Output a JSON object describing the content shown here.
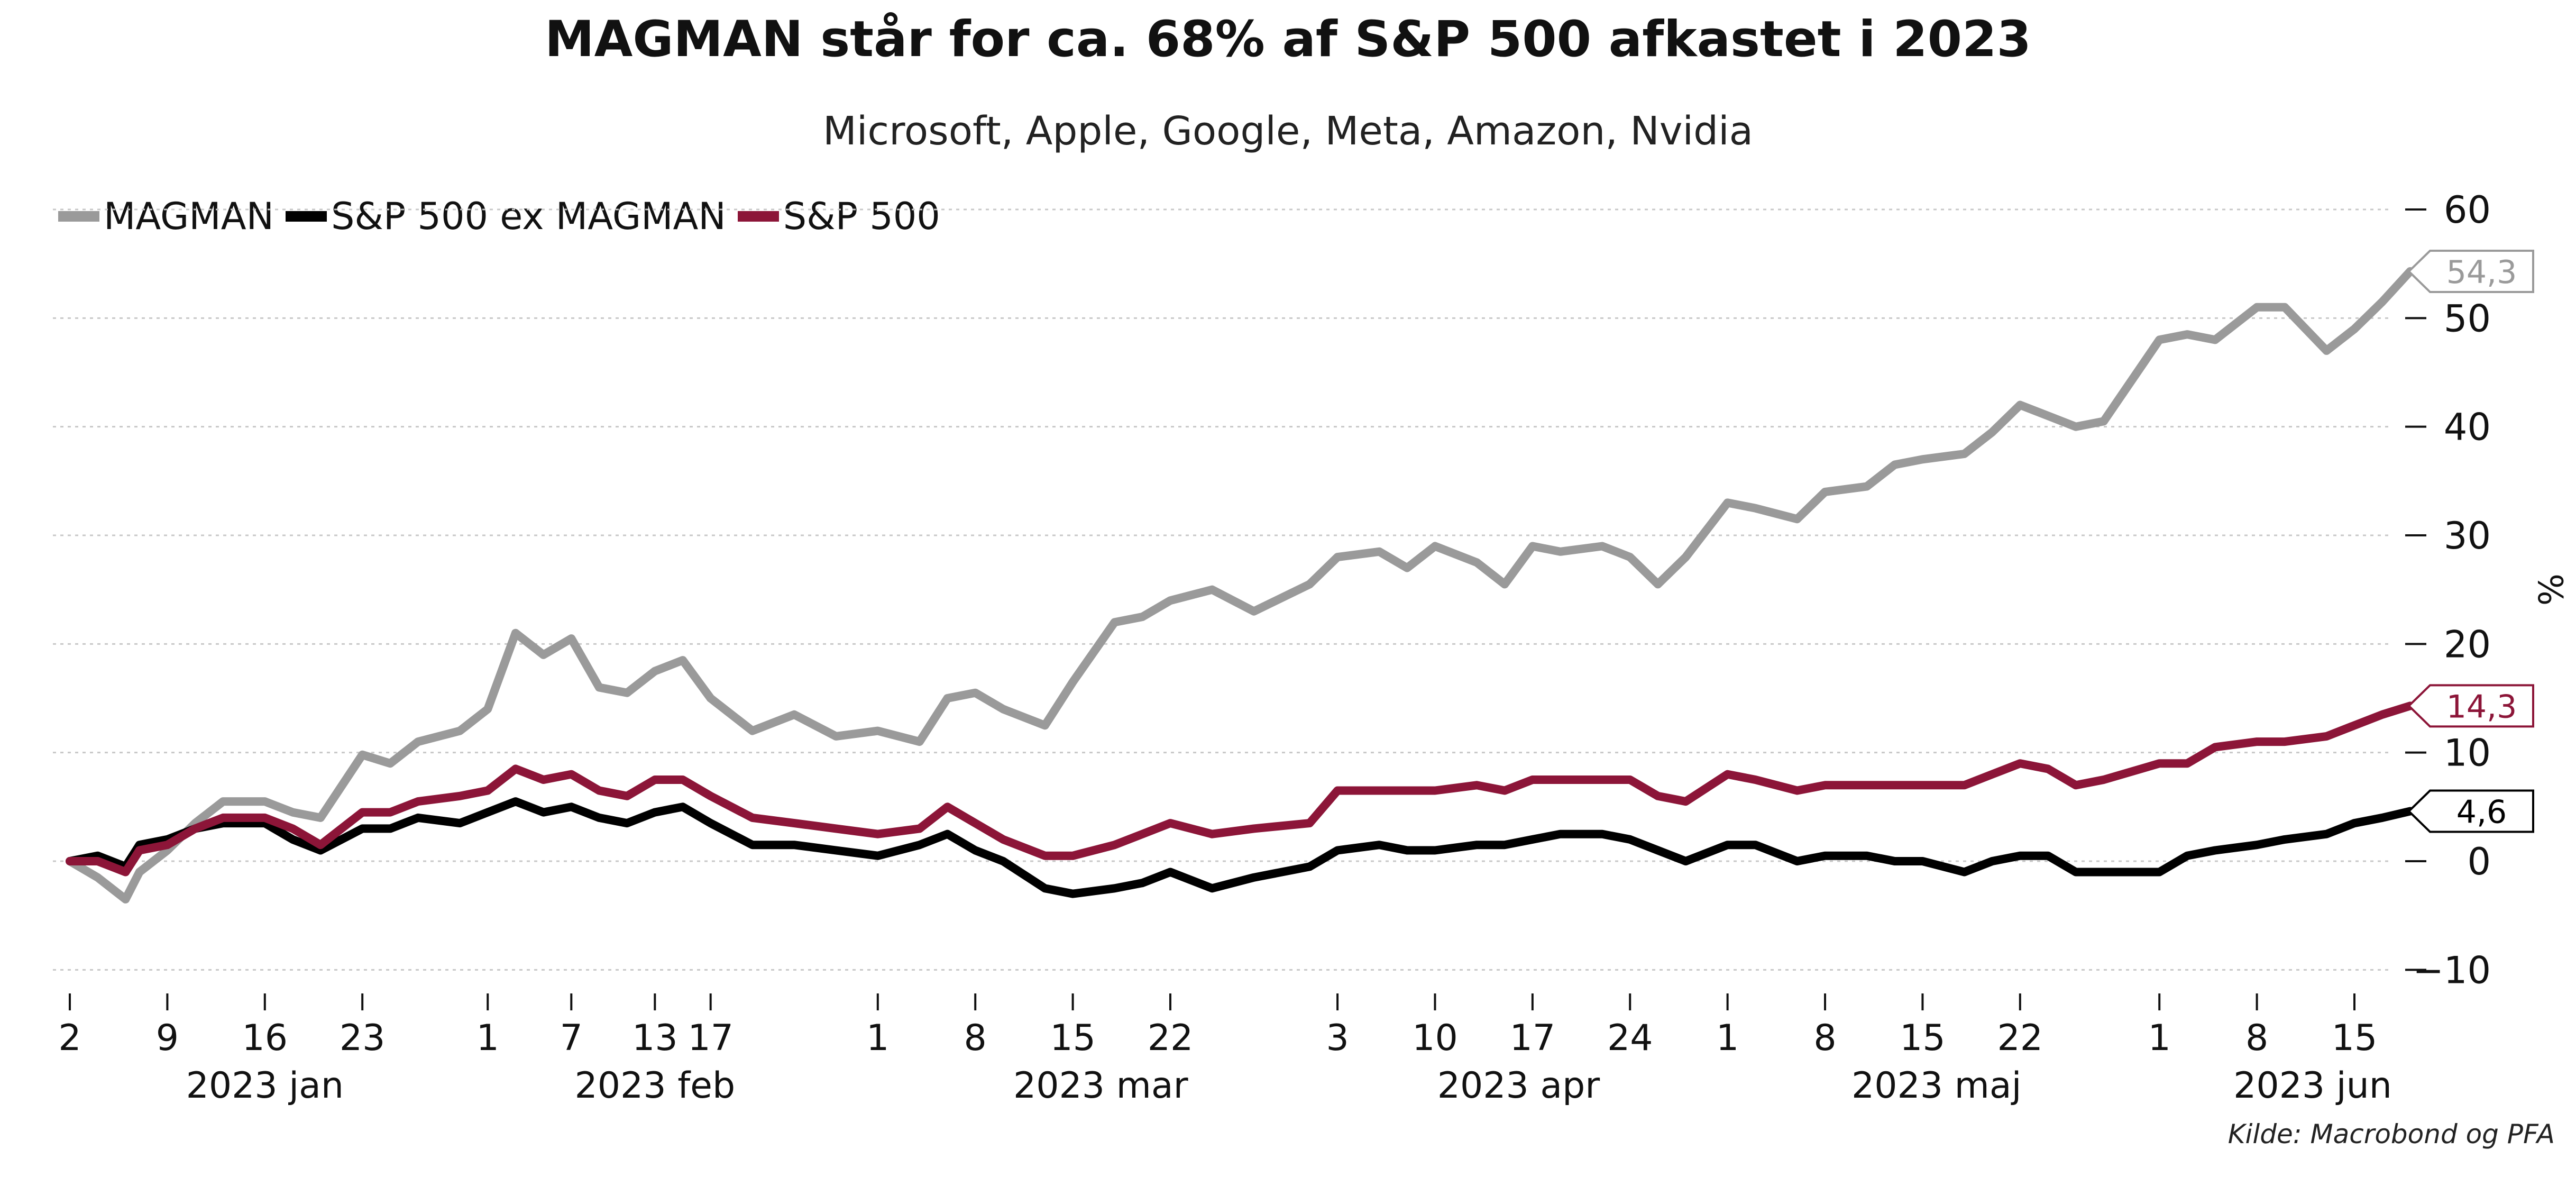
{
  "chart_data": {
    "type": "line",
    "title": "MAGMAN står for ca. 68% af S&P 500 afkastet i 2023",
    "subtitle": "Microsoft, Apple, Google, Meta, Amazon, Nvidia",
    "ylabel": "%",
    "ylim": [
      -12,
      63
    ],
    "yticks": [
      -10,
      0,
      10,
      20,
      30,
      40,
      50,
      60
    ],
    "grid": true,
    "legend_position": "top-left",
    "x_tick_labels": [
      {
        "date": "2023-01-02",
        "label": "2"
      },
      {
        "date": "2023-01-09",
        "label": "9"
      },
      {
        "date": "2023-01-16",
        "label": "16"
      },
      {
        "date": "2023-01-23",
        "label": "23"
      },
      {
        "date": "2023-02-01",
        "label": "1"
      },
      {
        "date": "2023-02-07",
        "label": "7"
      },
      {
        "date": "2023-02-13",
        "label": "13"
      },
      {
        "date": "2023-02-17",
        "label": "17"
      },
      {
        "date": "2023-03-01",
        "label": "1"
      },
      {
        "date": "2023-03-08",
        "label": "8"
      },
      {
        "date": "2023-03-15",
        "label": "15"
      },
      {
        "date": "2023-03-22",
        "label": "22"
      },
      {
        "date": "2023-04-03",
        "label": "3"
      },
      {
        "date": "2023-04-10",
        "label": "10"
      },
      {
        "date": "2023-04-17",
        "label": "17"
      },
      {
        "date": "2023-04-24",
        "label": "24"
      },
      {
        "date": "2023-05-01",
        "label": "1"
      },
      {
        "date": "2023-05-08",
        "label": "8"
      },
      {
        "date": "2023-05-15",
        "label": "15"
      },
      {
        "date": "2023-05-22",
        "label": "22"
      },
      {
        "date": "2023-06-01",
        "label": "1"
      },
      {
        "date": "2023-06-08",
        "label": "8"
      },
      {
        "date": "2023-06-15",
        "label": "15"
      }
    ],
    "month_labels": [
      {
        "date": "2023-01-16",
        "label": "2023 jan"
      },
      {
        "date": "2023-02-13",
        "label": "2023 feb"
      },
      {
        "date": "2023-03-17",
        "label": "2023 mar"
      },
      {
        "date": "2023-04-16",
        "label": "2023 apr"
      },
      {
        "date": "2023-05-16",
        "label": "2023 maj"
      },
      {
        "date": "2023-06-12",
        "label": "2023 jun"
      }
    ],
    "x": [
      "2023-01-02",
      "2023-01-04",
      "2023-01-06",
      "2023-01-07",
      "2023-01-09",
      "2023-01-11",
      "2023-01-13",
      "2023-01-16",
      "2023-01-18",
      "2023-01-20",
      "2023-01-23",
      "2023-01-25",
      "2023-01-27",
      "2023-01-30",
      "2023-02-01",
      "2023-02-03",
      "2023-02-05",
      "2023-02-07",
      "2023-02-09",
      "2023-02-11",
      "2023-02-13",
      "2023-02-15",
      "2023-02-17",
      "2023-02-20",
      "2023-02-23",
      "2023-02-26",
      "2023-03-01",
      "2023-03-04",
      "2023-03-06",
      "2023-03-08",
      "2023-03-10",
      "2023-03-13",
      "2023-03-15",
      "2023-03-18",
      "2023-03-20",
      "2023-03-22",
      "2023-03-25",
      "2023-03-28",
      "2023-04-01",
      "2023-04-03",
      "2023-04-06",
      "2023-04-08",
      "2023-04-10",
      "2023-04-13",
      "2023-04-15",
      "2023-04-17",
      "2023-04-19",
      "2023-04-22",
      "2023-04-24",
      "2023-04-26",
      "2023-04-28",
      "2023-05-01",
      "2023-05-03",
      "2023-05-06",
      "2023-05-08",
      "2023-05-11",
      "2023-05-13",
      "2023-05-15",
      "2023-05-18",
      "2023-05-20",
      "2023-05-22",
      "2023-05-24",
      "2023-05-26",
      "2023-05-28",
      "2023-06-01",
      "2023-06-03",
      "2023-06-05",
      "2023-06-08",
      "2023-06-10",
      "2023-06-13",
      "2023-06-15",
      "2023-06-17",
      "2023-06-19"
    ],
    "series": [
      {
        "name": "MAGMAN",
        "color": "#9a9a9a",
        "values": [
          0.0,
          -1.5,
          -3.5,
          -1.0,
          1.0,
          3.5,
          5.5,
          5.5,
          4.5,
          4.0,
          9.8,
          9.0,
          11.0,
          12.0,
          14.0,
          21.0,
          19.0,
          20.5,
          16.0,
          15.5,
          17.5,
          18.5,
          15.0,
          12.0,
          13.5,
          11.5,
          12.0,
          11.0,
          15.0,
          15.5,
          14.0,
          12.5,
          16.5,
          22.0,
          22.5,
          24.0,
          25.0,
          23.0,
          25.5,
          28.0,
          28.5,
          27.0,
          29.0,
          27.5,
          25.5,
          29.0,
          28.5,
          29.0,
          28.0,
          25.5,
          28.0,
          33.0,
          32.5,
          31.5,
          34.0,
          34.5,
          36.5,
          37.0,
          37.5,
          39.5,
          42.0,
          41.0,
          40.0,
          40.5,
          48.0,
          48.5,
          48.0,
          51.0,
          51.0,
          47.0,
          49.0,
          51.5,
          54.3
        ]
      },
      {
        "name": "S&P 500 ex MAGMAN",
        "color": "#000000",
        "values": [
          0.0,
          0.5,
          -0.5,
          1.5,
          2.0,
          3.0,
          3.5,
          3.5,
          2.0,
          1.0,
          3.0,
          3.0,
          4.0,
          3.5,
          4.5,
          5.5,
          4.5,
          5.0,
          4.0,
          3.5,
          4.5,
          5.0,
          3.5,
          1.5,
          1.5,
          1.0,
          0.5,
          1.5,
          2.5,
          1.0,
          0.0,
          -2.5,
          -3.0,
          -2.5,
          -2.0,
          -1.0,
          -2.5,
          -1.5,
          -0.5,
          1.0,
          1.5,
          1.0,
          1.0,
          1.5,
          1.5,
          2.0,
          2.5,
          2.5,
          2.0,
          1.0,
          0.0,
          1.5,
          1.5,
          0.0,
          0.5,
          0.5,
          0.0,
          0.0,
          -1.0,
          0.0,
          0.5,
          0.5,
          -1.0,
          -1.0,
          -1.0,
          0.5,
          1.0,
          1.5,
          2.0,
          2.5,
          3.5,
          4.0,
          4.6
        ]
      },
      {
        "name": "S&P 500",
        "color": "#8c1538",
        "values": [
          0.0,
          0.0,
          -1.0,
          1.0,
          1.5,
          3.0,
          4.0,
          4.0,
          3.0,
          1.5,
          4.5,
          4.5,
          5.5,
          6.0,
          6.5,
          8.5,
          7.5,
          8.0,
          6.5,
          6.0,
          7.5,
          7.5,
          6.0,
          4.0,
          3.5,
          3.0,
          2.5,
          3.0,
          5.0,
          3.5,
          2.0,
          0.5,
          0.5,
          1.5,
          2.5,
          3.5,
          2.5,
          3.0,
          3.5,
          6.5,
          6.5,
          6.5,
          6.5,
          7.0,
          6.5,
          7.5,
          7.5,
          7.5,
          7.5,
          6.0,
          5.5,
          8.0,
          7.5,
          6.5,
          7.0,
          7.0,
          7.0,
          7.0,
          7.0,
          8.0,
          9.0,
          8.5,
          7.0,
          7.5,
          9.0,
          9.0,
          10.5,
          11.0,
          11.0,
          11.5,
          12.5,
          13.5,
          14.3
        ]
      }
    ],
    "end_labels": [
      {
        "series": "MAGMAN",
        "text": "54,3",
        "value": 54.3
      },
      {
        "series": "S&P 500",
        "text": "14,3",
        "value": 14.3
      },
      {
        "series": "S&P 500 ex MAGMAN",
        "text": "4,6",
        "value": 4.6
      }
    ],
    "source": "Kilde: Macrobond og PFA"
  }
}
